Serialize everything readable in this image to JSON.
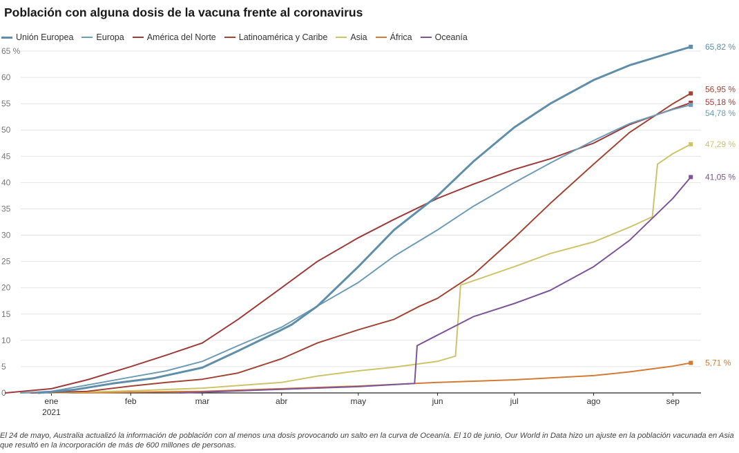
{
  "title": "Población con alguna dosis de la vacuna frente al coronavirus",
  "note": "El 24 de mayo, Australia actualizó la información de población con al menos una dosis provocando un salto en la curva de Oceanía. El 10 de junio, Our World in Data hizo un ajuste en la población vacunada en Asia que resultó en la incorporación de más de 600 millones de personas.",
  "legend": [
    {
      "name": "Unión Europea",
      "color": "#5e8ea9"
    },
    {
      "name": "Europa",
      "color": "#6e9bb5"
    },
    {
      "name": "América del Norte",
      "color": "#9e3a3a"
    },
    {
      "name": "Latinoamérica y Caribe",
      "color": "#a24434"
    },
    {
      "name": "Asia",
      "color": "#cdc46a"
    },
    {
      "name": "África",
      "color": "#d47a35"
    },
    {
      "name": "Oceanía",
      "color": "#7c5498"
    }
  ],
  "chart_data": {
    "type": "line",
    "title": "Población con alguna dosis de la vacuna frente al coronavirus",
    "xlabel": "",
    "ylabel": "",
    "x_range": [
      "2020-12-20",
      "2021-09-12"
    ],
    "ylim": [
      0,
      65
    ],
    "y_ticks": [
      0,
      5,
      10,
      15,
      20,
      25,
      30,
      35,
      40,
      45,
      50,
      55,
      60,
      65
    ],
    "y_tick_labels": [
      "0",
      "5",
      "10",
      "15",
      "20",
      "25",
      "30",
      "35",
      "40",
      "45",
      "50",
      "55",
      "60",
      "65 %"
    ],
    "x_ticks": [
      {
        "date": "2021-01-01",
        "label": "ene",
        "sublabel": "2021"
      },
      {
        "date": "2021-02-01",
        "label": "feb"
      },
      {
        "date": "2021-03-01",
        "label": "mar"
      },
      {
        "date": "2021-04-01",
        "label": "abr"
      },
      {
        "date": "2021-05-01",
        "label": "may"
      },
      {
        "date": "2021-06-01",
        "label": "jun"
      },
      {
        "date": "2021-07-01",
        "label": "jul"
      },
      {
        "date": "2021-08-01",
        "label": "ago"
      },
      {
        "date": "2021-09-01",
        "label": "sep"
      }
    ],
    "grid": true,
    "legend_position": "top-left",
    "series": [
      {
        "name": "Unión Europea",
        "color": "#5e8ea9",
        "end_label": "65,82 %",
        "points": [
          [
            "2020-12-27",
            0.0
          ],
          [
            "2021-01-10",
            0.6
          ],
          [
            "2021-01-25",
            1.8
          ],
          [
            "2021-02-10",
            2.8
          ],
          [
            "2021-03-01",
            4.8
          ],
          [
            "2021-03-15",
            8.0
          ],
          [
            "2021-04-01",
            12.0
          ],
          [
            "2021-04-05",
            13.0
          ],
          [
            "2021-04-15",
            16.5
          ],
          [
            "2021-05-01",
            24.0
          ],
          [
            "2021-05-15",
            31.0
          ],
          [
            "2021-06-01",
            37.5
          ],
          [
            "2021-06-15",
            44.0
          ],
          [
            "2021-07-01",
            50.5
          ],
          [
            "2021-07-15",
            55.0
          ],
          [
            "2021-08-01",
            59.5
          ],
          [
            "2021-08-15",
            62.3
          ],
          [
            "2021-09-01",
            64.8
          ],
          [
            "2021-09-08",
            65.82
          ]
        ]
      },
      {
        "name": "Europa",
        "color": "#6e9bb5",
        "end_label": "54,78 %",
        "points": [
          [
            "2020-12-20",
            0.0
          ],
          [
            "2021-01-01",
            0.3
          ],
          [
            "2021-01-15",
            1.5
          ],
          [
            "2021-02-01",
            3.0
          ],
          [
            "2021-02-15",
            4.2
          ],
          [
            "2021-03-01",
            6.0
          ],
          [
            "2021-03-15",
            9.0
          ],
          [
            "2021-04-01",
            12.5
          ],
          [
            "2021-04-15",
            16.5
          ],
          [
            "2021-05-01",
            21.0
          ],
          [
            "2021-05-15",
            26.0
          ],
          [
            "2021-06-01",
            31.0
          ],
          [
            "2021-06-15",
            35.5
          ],
          [
            "2021-07-01",
            40.0
          ],
          [
            "2021-07-15",
            43.7
          ],
          [
            "2021-08-01",
            48.0
          ],
          [
            "2021-08-15",
            51.2
          ],
          [
            "2021-09-01",
            53.9
          ],
          [
            "2021-09-08",
            54.78
          ]
        ]
      },
      {
        "name": "América del Norte",
        "color": "#9e3a3a",
        "end_label": "55,18 %",
        "points": [
          [
            "2020-12-14",
            0.0
          ],
          [
            "2021-01-01",
            0.8
          ],
          [
            "2021-01-15",
            2.5
          ],
          [
            "2021-02-01",
            5.0
          ],
          [
            "2021-02-15",
            7.2
          ],
          [
            "2021-03-01",
            9.5
          ],
          [
            "2021-03-15",
            14.0
          ],
          [
            "2021-04-01",
            20.0
          ],
          [
            "2021-04-15",
            25.0
          ],
          [
            "2021-05-01",
            29.5
          ],
          [
            "2021-05-15",
            33.0
          ],
          [
            "2021-06-01",
            37.0
          ],
          [
            "2021-06-15",
            39.7
          ],
          [
            "2021-07-01",
            42.5
          ],
          [
            "2021-07-15",
            44.5
          ],
          [
            "2021-08-01",
            47.5
          ],
          [
            "2021-08-15",
            51.0
          ],
          [
            "2021-09-01",
            54.0
          ],
          [
            "2021-09-08",
            55.18
          ]
        ]
      },
      {
        "name": "Latinoamérica y Caribe",
        "color": "#a24434",
        "end_label": "56,95 %",
        "points": [
          [
            "2020-12-24",
            0.0
          ],
          [
            "2021-01-15",
            0.3
          ],
          [
            "2021-02-01",
            1.3
          ],
          [
            "2021-02-15",
            2.0
          ],
          [
            "2021-03-01",
            2.6
          ],
          [
            "2021-03-15",
            3.8
          ],
          [
            "2021-04-01",
            6.5
          ],
          [
            "2021-04-15",
            9.5
          ],
          [
            "2021-05-01",
            12.0
          ],
          [
            "2021-05-15",
            14.0
          ],
          [
            "2021-05-25",
            16.5
          ],
          [
            "2021-06-01",
            18.0
          ],
          [
            "2021-06-15",
            22.5
          ],
          [
            "2021-07-01",
            29.5
          ],
          [
            "2021-07-15",
            36.0
          ],
          [
            "2021-08-01",
            43.5
          ],
          [
            "2021-08-15",
            49.5
          ],
          [
            "2021-09-01",
            55.0
          ],
          [
            "2021-09-08",
            56.95
          ]
        ]
      },
      {
        "name": "Asia",
        "color": "#cdc46a",
        "end_label": "47,29 %",
        "points": [
          [
            "2021-01-01",
            0.0
          ],
          [
            "2021-02-01",
            0.4
          ],
          [
            "2021-03-01",
            0.9
          ],
          [
            "2021-04-01",
            2.0
          ],
          [
            "2021-04-15",
            3.2
          ],
          [
            "2021-05-01",
            4.2
          ],
          [
            "2021-05-15",
            4.9
          ],
          [
            "2021-06-01",
            6.0
          ],
          [
            "2021-06-08",
            7.0
          ],
          [
            "2021-06-10",
            20.5
          ],
          [
            "2021-07-01",
            24.0
          ],
          [
            "2021-07-15",
            26.5
          ],
          [
            "2021-08-01",
            28.7
          ],
          [
            "2021-08-15",
            31.5
          ],
          [
            "2021-08-24",
            33.5
          ],
          [
            "2021-08-26",
            43.5
          ],
          [
            "2021-09-01",
            45.5
          ],
          [
            "2021-09-08",
            47.29
          ]
        ]
      },
      {
        "name": "África",
        "color": "#d47a35",
        "end_label": "5,71 %",
        "points": [
          [
            "2021-01-10",
            0.0
          ],
          [
            "2021-03-01",
            0.3
          ],
          [
            "2021-04-01",
            0.8
          ],
          [
            "2021-05-01",
            1.3
          ],
          [
            "2021-06-01",
            2.0
          ],
          [
            "2021-07-01",
            2.5
          ],
          [
            "2021-08-01",
            3.3
          ],
          [
            "2021-08-15",
            4.0
          ],
          [
            "2021-09-01",
            5.1
          ],
          [
            "2021-09-08",
            5.71
          ]
        ]
      },
      {
        "name": "Oceanía",
        "color": "#7c5498",
        "end_label": "41,05 %",
        "points": [
          [
            "2021-02-20",
            0.0
          ],
          [
            "2021-03-15",
            0.4
          ],
          [
            "2021-04-01",
            0.7
          ],
          [
            "2021-05-01",
            1.2
          ],
          [
            "2021-05-23",
            1.8
          ],
          [
            "2021-05-24",
            9.0
          ],
          [
            "2021-06-01",
            11.0
          ],
          [
            "2021-06-15",
            14.5
          ],
          [
            "2021-07-01",
            17.0
          ],
          [
            "2021-07-15",
            19.5
          ],
          [
            "2021-08-01",
            24.0
          ],
          [
            "2021-08-15",
            29.0
          ],
          [
            "2021-09-01",
            37.0
          ],
          [
            "2021-09-08",
            41.05
          ]
        ]
      }
    ]
  }
}
